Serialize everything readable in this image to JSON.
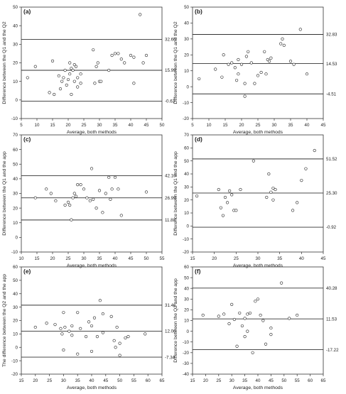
{
  "chart_data": [
    {
      "type": "scatter",
      "panel_label": "(a)",
      "xlabel": "Average, both methods",
      "ylabel": "Difference between the Q1 and the Q2",
      "xlim": [
        5,
        50
      ],
      "ylim": [
        -10,
        50
      ],
      "xticks": [
        5,
        10,
        15,
        20,
        25,
        30,
        35,
        40,
        45,
        50
      ],
      "yticks": [
        -10,
        0,
        10,
        20,
        30,
        40,
        50
      ],
      "reference_lines": [
        {
          "value": 32.6,
          "label": "32.60"
        },
        {
          "value": 15.99,
          "label": "15.99"
        },
        {
          "value": -0.63,
          "label": "-0.63"
        }
      ],
      "points": [
        [
          7,
          12
        ],
        [
          9.5,
          18
        ],
        [
          14,
          4
        ],
        [
          15,
          21
        ],
        [
          15.5,
          3
        ],
        [
          17,
          13
        ],
        [
          17.5,
          6
        ],
        [
          18,
          10
        ],
        [
          18.5,
          12
        ],
        [
          19,
          16
        ],
        [
          19.5,
          8
        ],
        [
          20,
          11
        ],
        [
          20.5,
          14
        ],
        [
          20.5,
          20
        ],
        [
          21,
          17
        ],
        [
          21,
          3
        ],
        [
          21.5,
          16
        ],
        [
          22,
          19
        ],
        [
          22,
          10
        ],
        [
          22.5,
          18
        ],
        [
          23,
          12
        ],
        [
          23,
          7
        ],
        [
          24,
          14
        ],
        [
          24,
          9
        ],
        [
          28,
          27
        ],
        [
          28.5,
          9
        ],
        [
          29,
          18
        ],
        [
          29.5,
          20
        ],
        [
          30,
          10
        ],
        [
          30.5,
          10
        ],
        [
          33,
          16
        ],
        [
          34,
          24
        ],
        [
          35,
          25
        ],
        [
          36,
          25
        ],
        [
          37,
          22
        ],
        [
          38,
          20
        ],
        [
          40,
          24
        ],
        [
          41,
          9
        ],
        [
          41,
          23
        ],
        [
          43,
          46
        ],
        [
          44,
          20
        ],
        [
          45,
          24
        ]
      ]
    },
    {
      "type": "scatter",
      "panel_label": "(b)",
      "xlabel": "Average, both methods",
      "ylabel": "Difference between the Q1 and the Q2",
      "xlim": [
        5,
        45
      ],
      "ylim": [
        -20,
        50
      ],
      "xticks": [
        5,
        10,
        15,
        20,
        25,
        30,
        35,
        40,
        45
      ],
      "yticks": [
        -20,
        -10,
        0,
        10,
        20,
        30,
        40,
        50
      ],
      "reference_lines": [
        {
          "value": 32.83,
          "label": "32.83"
        },
        {
          "value": 14.53,
          "label": "14.53"
        },
        {
          "value": -4.51,
          "label": "-4.51"
        }
      ],
      "points": [
        [
          7,
          5
        ],
        [
          12,
          11
        ],
        [
          14,
          6
        ],
        [
          14.5,
          20
        ],
        [
          16,
          14
        ],
        [
          17,
          15
        ],
        [
          18,
          12
        ],
        [
          18.5,
          4
        ],
        [
          19,
          8
        ],
        [
          19,
          17
        ],
        [
          20,
          14
        ],
        [
          21,
          -6
        ],
        [
          21,
          2
        ],
        [
          21.5,
          19
        ],
        [
          22,
          22
        ],
        [
          23,
          15
        ],
        [
          24,
          2
        ],
        [
          25,
          7
        ],
        [
          26,
          9
        ],
        [
          27,
          22
        ],
        [
          27.5,
          8
        ],
        [
          28,
          17
        ],
        [
          28.5,
          16
        ],
        [
          29,
          18
        ],
        [
          32,
          27
        ],
        [
          32.5,
          30
        ],
        [
          33,
          26
        ],
        [
          35,
          16
        ],
        [
          36,
          14
        ],
        [
          38,
          36
        ],
        [
          40,
          8
        ]
      ]
    },
    {
      "type": "scatter",
      "panel_label": "(c)",
      "xlabel": "Average, both methods",
      "ylabel": "Difference between the Q1 and the app",
      "xlim": [
        10,
        55
      ],
      "ylim": [
        -10,
        70
      ],
      "xticks": [
        10,
        15,
        20,
        25,
        30,
        35,
        40,
        45,
        50,
        55
      ],
      "yticks": [
        -10,
        0,
        10,
        20,
        30,
        40,
        50,
        60,
        70
      ],
      "reference_lines": [
        {
          "value": 42.1,
          "label": "42.10"
        },
        {
          "value": 26.99,
          "label": "26.99"
        },
        {
          "value": 11.88,
          "label": "11.88"
        }
      ],
      "points": [
        [
          14.5,
          27
        ],
        [
          18,
          33
        ],
        [
          19.5,
          30
        ],
        [
          21,
          25
        ],
        [
          24,
          22
        ],
        [
          25,
          24
        ],
        [
          25.5,
          22
        ],
        [
          26,
          12
        ],
        [
          26.5,
          27
        ],
        [
          27,
          30
        ],
        [
          27.5,
          28
        ],
        [
          28,
          36
        ],
        [
          29,
          36
        ],
        [
          30,
          33
        ],
        [
          31,
          27
        ],
        [
          32,
          25
        ],
        [
          32.5,
          47
        ],
        [
          33,
          26
        ],
        [
          34,
          20
        ],
        [
          35,
          32
        ],
        [
          36,
          17
        ],
        [
          37,
          30
        ],
        [
          38,
          41
        ],
        [
          38.5,
          26
        ],
        [
          39,
          33
        ],
        [
          40,
          41
        ],
        [
          41,
          33
        ],
        [
          42,
          15
        ],
        [
          50,
          31
        ]
      ]
    },
    {
      "type": "scatter",
      "panel_label": "(d)",
      "xlabel": "Average, both methods",
      "ylabel": "Difference between the Q1 and the app",
      "xlim": [
        15,
        45
      ],
      "ylim": [
        -20,
        70
      ],
      "xticks": [
        15,
        20,
        25,
        30,
        35,
        40,
        45
      ],
      "yticks": [
        -20,
        -10,
        0,
        10,
        20,
        30,
        40,
        50,
        60,
        70
      ],
      "reference_lines": [
        {
          "value": 51.52,
          "label": "51.52"
        },
        {
          "value": 25.3,
          "label": "25.30"
        },
        {
          "value": -0.92,
          "label": "-0.92"
        }
      ],
      "points": [
        [
          16,
          23
        ],
        [
          21,
          28
        ],
        [
          21.5,
          14
        ],
        [
          22,
          8
        ],
        [
          22.5,
          22
        ],
        [
          23,
          18
        ],
        [
          23.5,
          27
        ],
        [
          24,
          24
        ],
        [
          24.5,
          12
        ],
        [
          25,
          12
        ],
        [
          26,
          28
        ],
        [
          29,
          50
        ],
        [
          32,
          22
        ],
        [
          32.5,
          40
        ],
        [
          33,
          26
        ],
        [
          33.5,
          29
        ],
        [
          33.5,
          20
        ],
        [
          34,
          28
        ],
        [
          38,
          12
        ],
        [
          39,
          18
        ],
        [
          40,
          35
        ],
        [
          41,
          44
        ],
        [
          43,
          58
        ]
      ]
    },
    {
      "type": "scatter",
      "panel_label": "(e)",
      "xlabel": "Average, both methods",
      "ylabel": "The difference between the Q2 and the app",
      "xlim": [
        15,
        65
      ],
      "ylim": [
        -20,
        60
      ],
      "xticks": [
        15,
        20,
        25,
        30,
        35,
        40,
        45,
        50,
        55,
        60,
        65
      ],
      "yticks": [
        -20,
        -10,
        0,
        10,
        20,
        30,
        40,
        50,
        60
      ],
      "reference_lines": [
        {
          "value": 31.46,
          "label": "31.46"
        },
        {
          "value": 12.06,
          "label": "12.06"
        },
        {
          "value": -7.34,
          "label": "-7.34"
        }
      ],
      "points": [
        [
          20,
          15
        ],
        [
          24,
          18
        ],
        [
          27,
          17
        ],
        [
          29,
          14
        ],
        [
          29.5,
          10
        ],
        [
          30,
          26
        ],
        [
          30,
          -2
        ],
        [
          30.5,
          15
        ],
        [
          32,
          12
        ],
        [
          33,
          16
        ],
        [
          33,
          9
        ],
        [
          35,
          26
        ],
        [
          35,
          -5
        ],
        [
          36,
          14
        ],
        [
          38,
          8
        ],
        [
          39,
          19
        ],
        [
          40,
          16
        ],
        [
          40,
          -3
        ],
        [
          41,
          22
        ],
        [
          42,
          8
        ],
        [
          43,
          35
        ],
        [
          44,
          25
        ],
        [
          44,
          11
        ],
        [
          47,
          23
        ],
        [
          48,
          5
        ],
        [
          48.5,
          0
        ],
        [
          49,
          15
        ],
        [
          50,
          3
        ],
        [
          50,
          -6
        ],
        [
          52,
          7
        ],
        [
          53,
          8
        ],
        [
          59,
          10
        ]
      ]
    },
    {
      "type": "scatter",
      "panel_label": "(f)",
      "xlabel": "Average, both methods",
      "ylabel": "Difference between the Q2 and the app",
      "xlim": [
        15,
        65
      ],
      "ylim": [
        -40,
        60
      ],
      "xticks": [
        15,
        20,
        25,
        30,
        35,
        40,
        45,
        50,
        55,
        60,
        65
      ],
      "yticks": [
        -40,
        -30,
        -20,
        -10,
        0,
        10,
        20,
        30,
        40,
        50,
        60
      ],
      "reference_lines": [
        {
          "value": 40.28,
          "label": "40.28"
        },
        {
          "value": 11.53,
          "label": "11.53"
        },
        {
          "value": -17.22,
          "label": "-17.22"
        }
      ],
      "points": [
        [
          19,
          15
        ],
        [
          25,
          14
        ],
        [
          27,
          16
        ],
        [
          29,
          7
        ],
        [
          30,
          25
        ],
        [
          31,
          11
        ],
        [
          32,
          -14
        ],
        [
          33,
          17
        ],
        [
          34,
          5
        ],
        [
          35,
          -5
        ],
        [
          35,
          12
        ],
        [
          36,
          0
        ],
        [
          36,
          16
        ],
        [
          37,
          17
        ],
        [
          38,
          -20
        ],
        [
          39,
          28
        ],
        [
          40,
          30
        ],
        [
          41,
          15
        ],
        [
          42,
          10
        ],
        [
          43,
          -12
        ],
        [
          45,
          -3
        ],
        [
          45,
          3
        ],
        [
          49,
          45
        ],
        [
          52,
          12
        ],
        [
          55,
          15
        ]
      ]
    }
  ]
}
